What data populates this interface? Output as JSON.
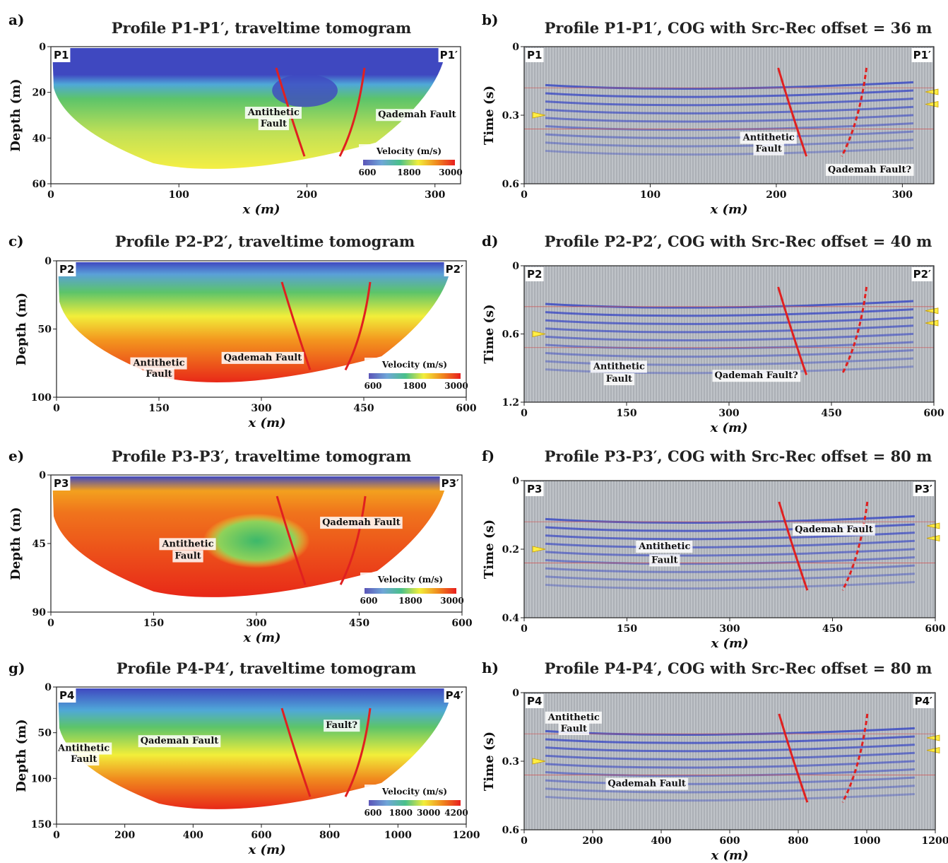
{
  "panels": [
    {
      "letter": "a)",
      "title": "Profile P1-P1′, traveltime tomogram",
      "kind": "tomo",
      "x": {
        "min": 0,
        "max": 320,
        "ticks": [
          "0",
          "100",
          "200",
          "300"
        ],
        "tickvals": [
          0,
          100,
          200,
          300
        ]
      },
      "y": {
        "min": 0,
        "max": 60,
        "ticks": [
          "0",
          "20",
          "40",
          "60"
        ],
        "tickvals": [
          0,
          20,
          40,
          60
        ],
        "label": "Depth (m)"
      },
      "xlabel": "x (m)",
      "left_tag": "P1",
      "right_tag": "P1′",
      "colorbar": {
        "title": "Velocity (m/s)",
        "labels": [
          "600",
          "1800",
          "3000"
        ]
      },
      "annotations": [
        {
          "text": "Antithetic",
          "x": 174,
          "y": 30
        },
        {
          "text": "Fault",
          "x": 174,
          "y": 35
        },
        {
          "text": "Qademah Fault",
          "x": 286,
          "y": 31
        }
      ]
    },
    {
      "letter": "b)",
      "title": "Profile P1-P1′, COG with Src-Rec offset = 36 m",
      "kind": "cog",
      "x": {
        "min": 0,
        "max": 325,
        "ticks": [
          "0",
          "100",
          "200",
          "300"
        ],
        "tickvals": [
          0,
          100,
          200,
          300
        ]
      },
      "y": {
        "min": 0,
        "max": 0.6,
        "ticks": [
          "0",
          "0.3",
          "0.6"
        ],
        "tickvals": [
          0,
          0.3,
          0.6
        ],
        "label": "Time (s)"
      },
      "xlabel": "x (m)",
      "left_tag": "P1",
      "right_tag": "P1′",
      "annotations": [
        {
          "text": "Antithetic",
          "x": 194,
          "y": 0.41
        },
        {
          "text": "Fault",
          "x": 194,
          "y": 0.46
        },
        {
          "text": "Qademah Fault?",
          "x": 274,
          "y": 0.55
        }
      ]
    },
    {
      "letter": "c)",
      "title": "Profile P2-P2′, traveltime tomogram",
      "kind": "tomo",
      "x": {
        "min": 0,
        "max": 600,
        "ticks": [
          "0",
          "150",
          "300",
          "450",
          "600"
        ],
        "tickvals": [
          0,
          150,
          300,
          450,
          600
        ]
      },
      "y": {
        "min": 0,
        "max": 100,
        "ticks": [
          "0",
          "50",
          "100"
        ],
        "tickvals": [
          0,
          50,
          100
        ],
        "label": "Depth (m)"
      },
      "xlabel": "x (m)",
      "left_tag": "P2",
      "right_tag": "P2′",
      "colorbar": {
        "title": "Velocity (m/s)",
        "labels": [
          "600",
          "1800",
          "3000"
        ]
      },
      "annotations": [
        {
          "text": "Antithetic",
          "x": 150,
          "y": 77
        },
        {
          "text": "Fault",
          "x": 150,
          "y": 85
        },
        {
          "text": "Qademah Fault",
          "x": 302,
          "y": 73
        }
      ]
    },
    {
      "letter": "d)",
      "title": "Profile P2-P2′, COG with Src-Rec offset = 40 m",
      "kind": "cog",
      "x": {
        "min": 0,
        "max": 600,
        "ticks": [
          "0",
          "150",
          "300",
          "450",
          "600"
        ],
        "tickvals": [
          0,
          150,
          300,
          450,
          600
        ]
      },
      "y": {
        "min": 0,
        "max": 1.2,
        "ticks": [
          "0",
          "0.6",
          "1.2"
        ],
        "tickvals": [
          0,
          0.6,
          1.2
        ],
        "label": "Time (s)"
      },
      "xlabel": "x (m)",
      "left_tag": "P2",
      "right_tag": "P2′",
      "annotations": [
        {
          "text": "Antithetic",
          "x": 139,
          "y": 0.91
        },
        {
          "text": "Fault",
          "x": 139,
          "y": 1.02
        },
        {
          "text": "Qademah Fault?",
          "x": 340,
          "y": 0.99
        }
      ]
    },
    {
      "letter": "e)",
      "title": "Profile P3-P3′, traveltime tomogram",
      "kind": "tomo",
      "x": {
        "min": 0,
        "max": 600,
        "ticks": [
          "0",
          "150",
          "300",
          "450",
          "600"
        ],
        "tickvals": [
          0,
          150,
          300,
          450,
          600
        ]
      },
      "y": {
        "min": 0,
        "max": 90,
        "ticks": [
          "0",
          "45",
          "90"
        ],
        "tickvals": [
          0,
          45,
          90
        ],
        "label": "Depth (m)"
      },
      "xlabel": "x (m)",
      "left_tag": "P3",
      "right_tag": "P3′",
      "colorbar": {
        "title": "Velocity (m/s)",
        "labels": [
          "600",
          "1800",
          "3000"
        ]
      },
      "annotations": [
        {
          "text": "Antithetic",
          "x": 200,
          "y": 47
        },
        {
          "text": "Fault",
          "x": 200,
          "y": 55
        },
        {
          "text": "Qademah Fault",
          "x": 453,
          "y": 33
        }
      ]
    },
    {
      "letter": "f)",
      "title": "Profile P3-P3′, COG with Src-Rec offset  = 80 m",
      "kind": "cog",
      "x": {
        "min": 0,
        "max": 600,
        "ticks": [
          "0",
          "150",
          "300",
          "450",
          "600"
        ],
        "tickvals": [
          0,
          150,
          300,
          450,
          600
        ]
      },
      "y": {
        "min": 0,
        "max": 0.4,
        "ticks": [
          "0",
          "0.2",
          "0.4"
        ],
        "tickvals": [
          0,
          0.2,
          0.4
        ],
        "label": "Time (s)"
      },
      "xlabel": "x (m)",
      "left_tag": "P3",
      "right_tag": "P3′",
      "annotations": [
        {
          "text": "Antithetic",
          "x": 205,
          "y": 0.2
        },
        {
          "text": "Fault",
          "x": 205,
          "y": 0.24
        },
        {
          "text": "Qademah Fault",
          "x": 452,
          "y": 0.15
        }
      ]
    },
    {
      "letter": "g)",
      "title": "Profile P4-P4′, traveltime tomogram",
      "kind": "tomo",
      "x": {
        "min": 0,
        "max": 1200,
        "ticks": [
          "0",
          "200",
          "400",
          "600",
          "800",
          "1000",
          "1200"
        ],
        "tickvals": [
          0,
          200,
          400,
          600,
          800,
          1000,
          1200
        ]
      },
      "y": {
        "min": 0,
        "max": 150,
        "ticks": [
          "0",
          "50",
          "100",
          "150"
        ],
        "tickvals": [
          0,
          50,
          100,
          150
        ],
        "label": "Depth (m)"
      },
      "xlabel": "x (m)",
      "left_tag": "P4",
      "right_tag": "P4′",
      "colorbar": {
        "title": "Velocity (m/s)",
        "labels": [
          "600",
          "1800",
          "3000",
          "4200"
        ]
      },
      "annotations": [
        {
          "text": "Antithetic",
          "x": 80,
          "y": 70
        },
        {
          "text": "Fault",
          "x": 80,
          "y": 82
        },
        {
          "text": "Qademah Fault",
          "x": 360,
          "y": 62
        },
        {
          "text": "Fault?",
          "x": 835,
          "y": 45
        }
      ]
    },
    {
      "letter": "h)",
      "title": "Profile P4-P4′, COG with Src-Rec offset = 80 m",
      "kind": "cog",
      "x": {
        "min": 0,
        "max": 1200,
        "ticks": [
          "0",
          "200",
          "400",
          "600",
          "800",
          "1000",
          "1200"
        ],
        "tickvals": [
          0,
          200,
          400,
          600,
          800,
          1000,
          1200
        ]
      },
      "y": {
        "min": 0,
        "max": 0.6,
        "ticks": [
          "0",
          "0.3",
          "0.6"
        ],
        "tickvals": [
          0,
          0.3,
          0.6
        ],
        "label": "Time (s)"
      },
      "xlabel": "x (m)",
      "left_tag": "P4",
      "right_tag": "P4′",
      "annotations": [
        {
          "text": "Antithetic",
          "x": 145,
          "y": 0.12
        },
        {
          "text": "Fault",
          "x": 145,
          "y": 0.17
        },
        {
          "text": "Qademah Fault",
          "x": 358,
          "y": 0.41
        }
      ]
    }
  ],
  "colors": {
    "fault": "#e02020",
    "arrow": "#ffee44",
    "seismic": "#2b3cc4"
  }
}
